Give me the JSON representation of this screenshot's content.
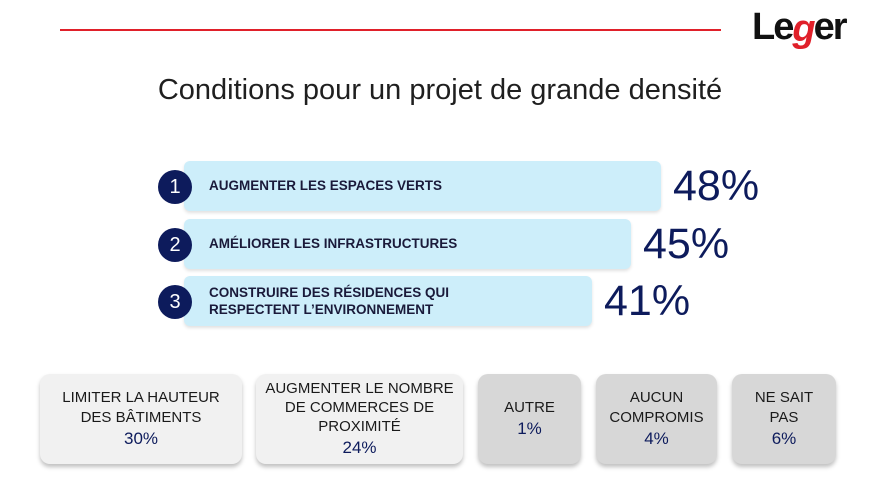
{
  "brand": {
    "logo_text": "Leger",
    "logo_parts": [
      "Le",
      "g",
      "er"
    ],
    "accent_color": "#e0202a",
    "navy_color": "#0d1b5c"
  },
  "chart_data": {
    "type": "bar",
    "title": "Conditions pour un projet de grande densité",
    "top_ranked": [
      {
        "rank": "1",
        "label": "AUGMENTER LES ESPACES VERTS",
        "value": 48,
        "display": "48%"
      },
      {
        "rank": "2",
        "label": "AMÉLIORER LES INFRASTRUCTURES",
        "value": 45,
        "display": "45%"
      },
      {
        "rank": "3",
        "label": "CONSTRUIRE DES RÉSIDENCES QUI\nRESPECTENT L’ENVIRONNEMENT",
        "value": 41,
        "display": "41%"
      }
    ],
    "other_options": [
      {
        "label": "LIMITER LA HAUTEUR\nDES BÂTIMENTS",
        "value": 30,
        "display": "30%"
      },
      {
        "label": "AUGMENTER LE NOMBRE\nDE COMMERCES DE\nPROXIMITÉ",
        "value": 24,
        "display": "24%"
      },
      {
        "label": "AUTRE",
        "value": 1,
        "display": "1%"
      },
      {
        "label": "AUCUN\nCOMPROMIS",
        "value": 4,
        "display": "4%"
      },
      {
        "label": "NE SAIT\nPAS",
        "value": 6,
        "display": "6%"
      }
    ]
  }
}
